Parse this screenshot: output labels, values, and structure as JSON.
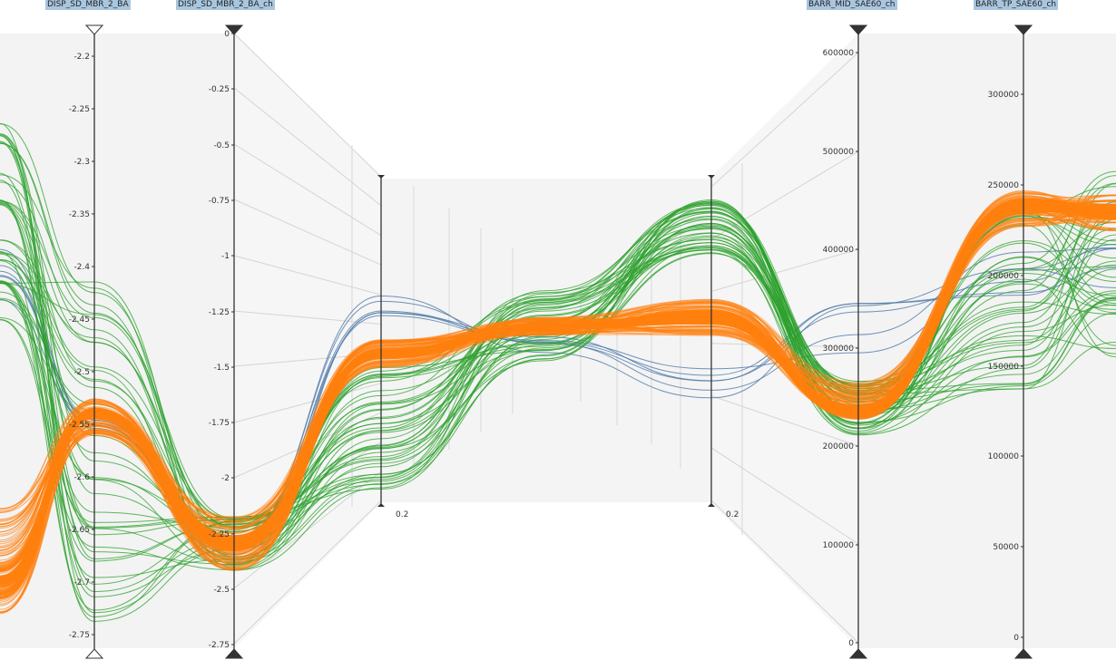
{
  "chart_data": {
    "type": "parallel-coordinates",
    "axes": [
      {
        "name": "DISP_SD_MBR_2_BA",
        "ticks": [
          "-2.2",
          "-2.25",
          "-2.3",
          "-2.35",
          "-2.4",
          "-2.45",
          "-2.5",
          "-2.55",
          "-2.6",
          "-2.65",
          "-2.7",
          "-2.75"
        ]
      },
      {
        "name": "DISP_SD_MBR_2_BA_ch",
        "ticks": [
          "0",
          "-0.25",
          "-0.5",
          "-0.75",
          "-1",
          "-1.25",
          "-1.5",
          "-1.75",
          "-2",
          "-2.25",
          "-2.5",
          "-2.75"
        ]
      },
      {
        "name": "",
        "ticks": [
          "0.2"
        ]
      },
      {
        "name": "",
        "ticks": [
          "0.2"
        ]
      },
      {
        "name": "BARR_MID_SAE60_ch",
        "ticks": [
          "600000",
          "500000",
          "400000",
          "300000",
          "200000",
          "100000",
          "0"
        ]
      },
      {
        "name": "BARR_TP_SAE60_ch",
        "ticks": [
          "300000",
          "250000",
          "200000",
          "150000",
          "100000",
          "50000",
          "0"
        ]
      }
    ],
    "series_colors": {
      "orange": "#ff7f0e",
      "green": "#2ca02c",
      "blue": "#4c78a8"
    },
    "grid": "3d-panels",
    "legend": "none"
  }
}
